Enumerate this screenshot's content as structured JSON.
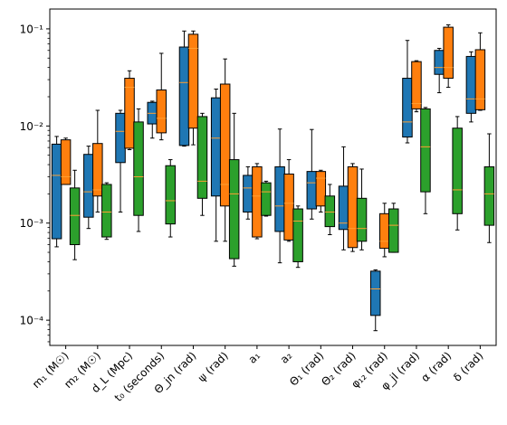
{
  "chart_data": {
    "type": "box",
    "y_scale": "log",
    "ylim": [
      5.5e-05,
      0.16
    ],
    "y_ticks": [
      {
        "value": 0.0001,
        "label": "10⁻⁴"
      },
      {
        "value": 0.001,
        "label": "10⁻³"
      },
      {
        "value": 0.01,
        "label": "10⁻²"
      },
      {
        "value": 0.1,
        "label": "10⁻¹"
      }
    ],
    "grid": false,
    "series_colors": [
      "#1f77b4",
      "#ff7f0e",
      "#2ca02c"
    ],
    "median_color": "#ff9f32",
    "categories": [
      {
        "label": "m₁ (M☉)"
      },
      {
        "label": "m₂ (M☉)"
      },
      {
        "label": "d_L (Mpc)"
      },
      {
        "label": "t₀ (seconds)"
      },
      {
        "label": "Θ_jn (rad)"
      },
      {
        "label": "ψ (rad)"
      },
      {
        "label": "a₁"
      },
      {
        "label": "a₂"
      },
      {
        "label": "Θ₁ (rad)"
      },
      {
        "label": "Θ₂ (rad)"
      },
      {
        "label": "φ₁₂ (rad)"
      },
      {
        "label": "φ_jl (rad)"
      },
      {
        "label": "α (rad)"
      },
      {
        "label": "δ (rad)"
      }
    ],
    "boxes": [
      [
        {
          "whislo": 0.00057,
          "q1": 0.00069,
          "med": 0.0031,
          "q3": 0.0065,
          "whishi": 0.0078
        },
        {
          "whislo": 0.00088,
          "q1": 0.00115,
          "med": 0.0021,
          "q3": 0.0051,
          "whishi": 0.0062
        },
        {
          "whislo": 0.0013,
          "q1": 0.0042,
          "med": 0.0088,
          "q3": 0.0135,
          "whishi": 0.0145
        },
        {
          "whislo": 0.0075,
          "q1": 0.0105,
          "med": 0.0135,
          "q3": 0.0175,
          "whishi": 0.018
        },
        {
          "whislo": 0.0062,
          "q1": 0.0063,
          "med": 0.028,
          "q3": 0.065,
          "whishi": 0.095
        },
        {
          "whislo": 0.00065,
          "q1": 0.0019,
          "med": 0.0075,
          "q3": 0.0195,
          "whishi": 0.024
        },
        {
          "whislo": 0.0011,
          "q1": 0.0013,
          "med": 0.0023,
          "q3": 0.0031,
          "whishi": 0.0038
        },
        {
          "whislo": 0.00039,
          "q1": 0.00082,
          "med": 0.0015,
          "q3": 0.0038,
          "whishi": 0.0093
        },
        {
          "whislo": 0.0011,
          "q1": 0.0014,
          "med": 0.0026,
          "q3": 0.0034,
          "whishi": 0.0092
        },
        {
          "whislo": 0.00053,
          "q1": 0.00086,
          "med": 0.001,
          "q3": 0.0024,
          "whishi": 0.0061
        },
        {
          "whislo": 7.8e-05,
          "q1": 0.000112,
          "med": 0.00021,
          "q3": 0.00032,
          "whishi": 0.00033
        },
        {
          "whislo": 0.0067,
          "q1": 0.0077,
          "med": 0.011,
          "q3": 0.031,
          "whishi": 0.076
        },
        {
          "whislo": 0.022,
          "q1": 0.034,
          "med": 0.04,
          "q3": 0.06,
          "whishi": 0.063
        },
        {
          "whislo": 0.011,
          "q1": 0.0135,
          "med": 0.019,
          "q3": 0.052,
          "whishi": 0.058
        }
      ],
      [
        {
          "whislo": 0.0025,
          "q1": 0.0025,
          "med": 0.003,
          "q3": 0.0072,
          "whishi": 0.0075
        },
        {
          "whislo": 0.0013,
          "q1": 0.0019,
          "med": 0.0022,
          "q3": 0.0066,
          "whishi": 0.0145
        },
        {
          "whislo": 0.0057,
          "q1": 0.0059,
          "med": 0.025,
          "q3": 0.031,
          "whishi": 0.037
        },
        {
          "whislo": 0.0072,
          "q1": 0.0085,
          "med": 0.012,
          "q3": 0.0235,
          "whishi": 0.056
        },
        {
          "whislo": 0.0064,
          "q1": 0.0095,
          "med": 0.063,
          "q3": 0.088,
          "whishi": 0.095
        },
        {
          "whislo": 0.00065,
          "q1": 0.0015,
          "med": 0.0025,
          "q3": 0.027,
          "whishi": 0.049
        },
        {
          "whislo": 0.00069,
          "q1": 0.00072,
          "med": 0.0019,
          "q3": 0.0038,
          "whishi": 0.0041
        },
        {
          "whislo": 0.00065,
          "q1": 0.00067,
          "med": 0.0016,
          "q3": 0.0032,
          "whishi": 0.0045
        },
        {
          "whislo": 0.0013,
          "q1": 0.0015,
          "med": 0.0029,
          "q3": 0.0034,
          "whishi": 0.0035
        },
        {
          "whislo": 0.00051,
          "q1": 0.00056,
          "med": 0.00088,
          "q3": 0.0038,
          "whishi": 0.0041
        },
        {
          "whislo": 0.00045,
          "q1": 0.00055,
          "med": 0.00065,
          "q3": 0.00125,
          "whishi": 0.0016
        },
        {
          "whislo": 0.014,
          "q1": 0.015,
          "med": 0.017,
          "q3": 0.046,
          "whishi": 0.047
        },
        {
          "whislo": 0.025,
          "q1": 0.031,
          "med": 0.04,
          "q3": 0.104,
          "whishi": 0.11
        },
        {
          "whislo": 0.0145,
          "q1": 0.0147,
          "med": 0.019,
          "q3": 0.061,
          "whishi": 0.091
        }
      ],
      [
        {
          "whislo": 0.00042,
          "q1": 0.0006,
          "med": 0.0012,
          "q3": 0.0023,
          "whishi": 0.0035
        },
        {
          "whislo": 0.00068,
          "q1": 0.00072,
          "med": 0.0013,
          "q3": 0.0025,
          "whishi": 0.0026
        },
        {
          "whislo": 0.00082,
          "q1": 0.0012,
          "med": 0.003,
          "q3": 0.011,
          "whishi": 0.015
        },
        {
          "whislo": 0.00072,
          "q1": 0.00098,
          "med": 0.0017,
          "q3": 0.0039,
          "whishi": 0.0045
        },
        {
          "whislo": 0.0012,
          "q1": 0.0018,
          "med": 0.0027,
          "q3": 0.0125,
          "whishi": 0.0135
        },
        {
          "whislo": 0.00036,
          "q1": 0.00043,
          "med": 0.002,
          "q3": 0.0045,
          "whishi": 0.0135
        },
        {
          "whislo": 0.00118,
          "q1": 0.0012,
          "med": 0.0021,
          "q3": 0.0026,
          "whishi": 0.0027
        },
        {
          "whislo": 0.00035,
          "q1": 0.0004,
          "med": 0.00105,
          "q3": 0.0014,
          "whishi": 0.0015
        },
        {
          "whislo": 0.00076,
          "q1": 0.00092,
          "med": 0.0013,
          "q3": 0.0019,
          "whishi": 0.0025
        },
        {
          "whislo": 0.00053,
          "q1": 0.00065,
          "med": 0.00088,
          "q3": 0.0018,
          "whishi": 0.0036
        },
        {
          "whislo": 0.0005,
          "q1": 0.0005,
          "med": 0.00095,
          "q3": 0.0014,
          "whishi": 0.0016
        },
        {
          "whislo": 0.00125,
          "q1": 0.0021,
          "med": 0.0061,
          "q3": 0.015,
          "whishi": 0.0155
        },
        {
          "whislo": 0.00085,
          "q1": 0.00125,
          "med": 0.0022,
          "q3": 0.0095,
          "whishi": 0.0125
        },
        {
          "whislo": 0.00063,
          "q1": 0.00095,
          "med": 0.002,
          "q3": 0.0038,
          "whishi": 0.0083
        }
      ]
    ]
  }
}
